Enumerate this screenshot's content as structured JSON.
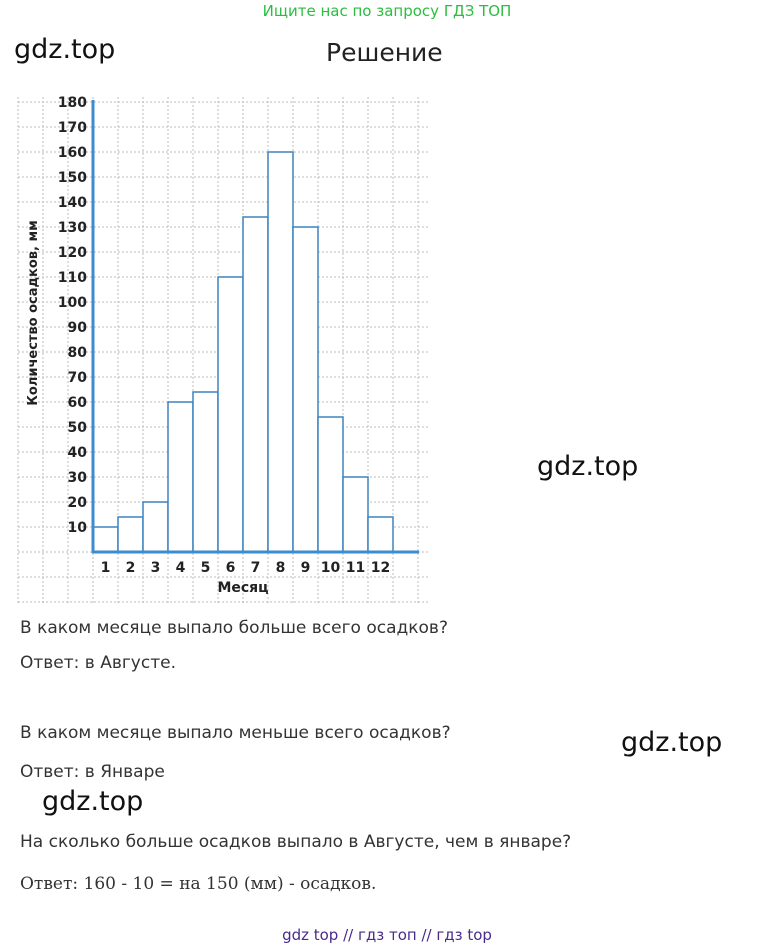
{
  "header": {
    "search_hint": "Ищите нас по запросу ГДЗ ТОП"
  },
  "watermarks": [
    "gdz.top",
    "gdz.top",
    "gdz.top",
    "gdz.top"
  ],
  "title": "Решение",
  "chart_data": {
    "type": "bar",
    "xlabel": "Месяц",
    "ylabel": "Количество осадков, мм",
    "categories": [
      "1",
      "2",
      "3",
      "4",
      "5",
      "6",
      "7",
      "8",
      "9",
      "10",
      "11",
      "12"
    ],
    "values": [
      10,
      14,
      20,
      60,
      64,
      110,
      134,
      160,
      130,
      54,
      30,
      14
    ],
    "yticks": [
      10,
      20,
      30,
      40,
      50,
      60,
      70,
      80,
      90,
      100,
      110,
      120,
      130,
      140,
      150,
      160,
      170,
      180
    ],
    "ylim": [
      0,
      180
    ],
    "grid": true,
    "bar_color": "#ffffff",
    "bar_edge_color": "#3d84c0",
    "axis_color": "#3d8ccd",
    "grid_color": "#bdbdbd"
  },
  "qa": [
    {
      "question": "В каком месяце выпало больше всего осадков?",
      "answer": "Ответ: в Августе."
    },
    {
      "question": "В каком месяце выпало меньше всего осадков?",
      "answer": "Ответ: в Январе"
    },
    {
      "question": "На сколько больше осадков выпало в Августе, чем в январе?",
      "answer": "Ответ: 160 - 10 = на 150 (мм) - осадков."
    }
  ],
  "footer": {
    "text": "gdz top  //  гдз топ  //  гдз top"
  }
}
